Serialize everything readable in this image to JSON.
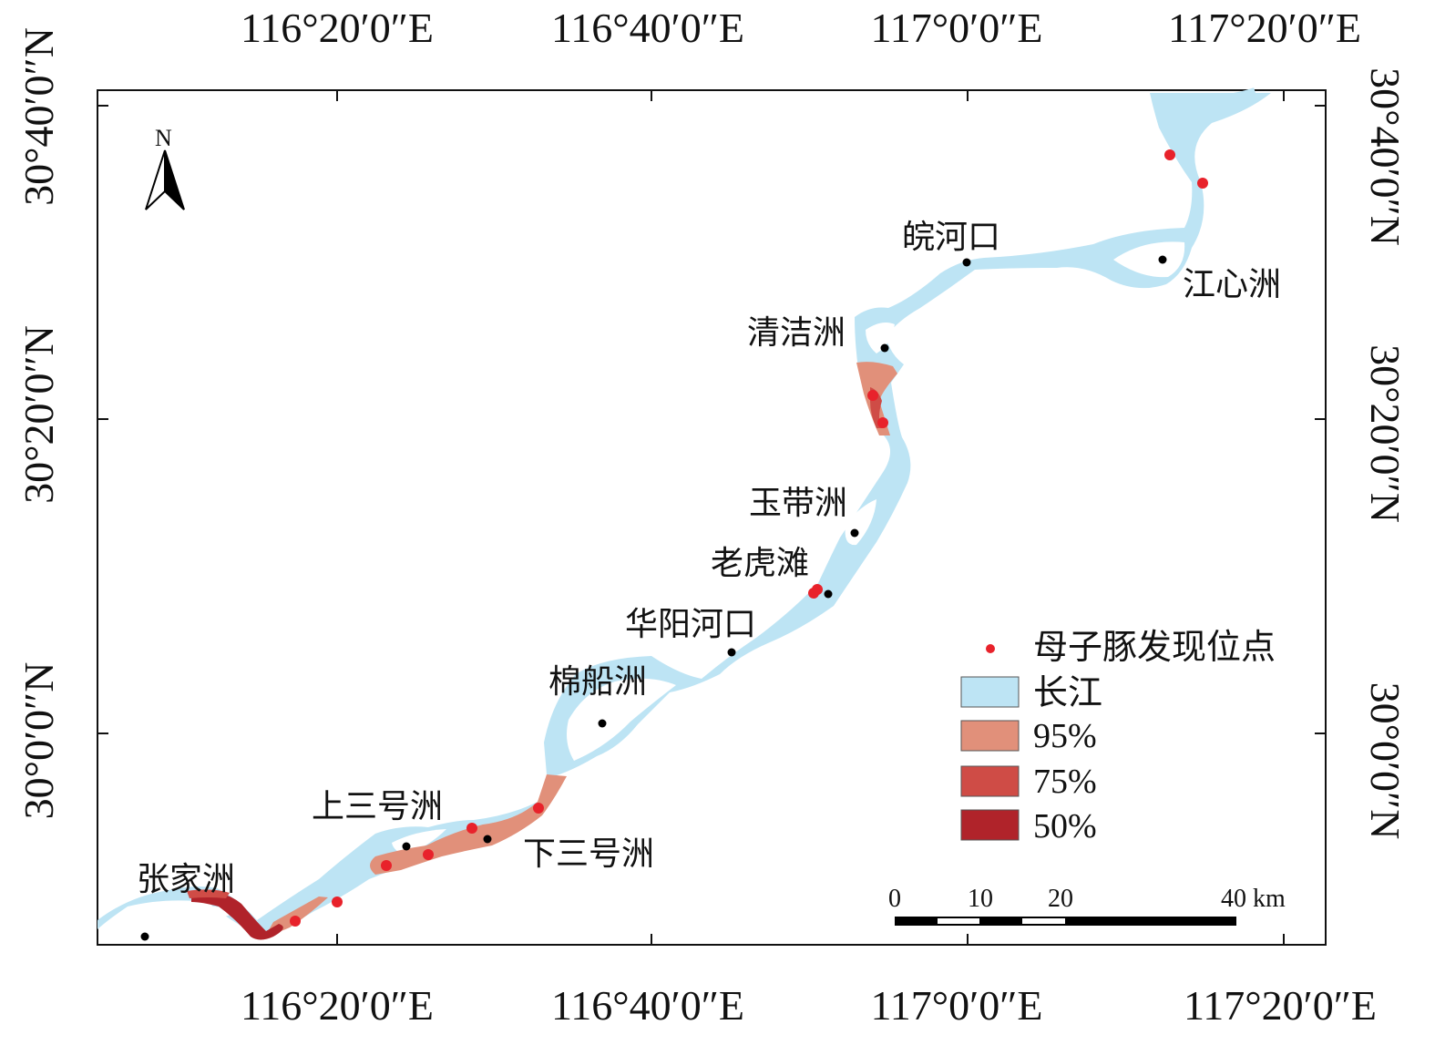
{
  "map": {
    "coordinates": {
      "top_longitudes": [
        "116°20′0″E",
        "116°40′0″E",
        "117°0′0″E",
        "117°20′0″E"
      ],
      "bottom_longitudes": [
        "116°20′0″E",
        "116°40′0″E",
        "117°0′0″E",
        "117°20′0″E"
      ],
      "left_latitudes": [
        "30°40′0″N",
        "30°20′0″N",
        "30°0′0″N"
      ],
      "right_latitudes": [
        "30°40′0″N",
        "30°20′0″N",
        "30°0′0″N"
      ]
    },
    "north_arrow": {
      "label": "N"
    },
    "places": [
      {
        "id": "wanhekou",
        "label": "皖河口"
      },
      {
        "id": "jiangxinzhou",
        "label": "江心洲"
      },
      {
        "id": "qingjiezhou",
        "label": "清洁洲"
      },
      {
        "id": "yudaizhou",
        "label": "玉带洲"
      },
      {
        "id": "laohutan",
        "label": "老虎滩"
      },
      {
        "id": "huayanghekou",
        "label": "华阳河口"
      },
      {
        "id": "mianchuanzhou",
        "label": "棉船洲"
      },
      {
        "id": "shangsanhaozhou",
        "label": "上三号洲"
      },
      {
        "id": "xiasanhaozhou",
        "label": "下三号洲"
      },
      {
        "id": "zhangjiazhou",
        "label": "张家洲"
      }
    ],
    "legend": {
      "items": [
        {
          "label": "母子豚发现位点",
          "kind": "point",
          "color": "#e8222b"
        },
        {
          "label": "长江",
          "kind": "area",
          "color": "#bde4f4"
        },
        {
          "label": "95%",
          "kind": "area",
          "color": "#e1907a"
        },
        {
          "label": "75%",
          "kind": "area",
          "color": "#cf4c46"
        },
        {
          "label": "50%",
          "kind": "area",
          "color": "#b0232a"
        }
      ]
    },
    "scale_bar": {
      "labels": [
        "0",
        "10",
        "20",
        "40 km"
      ]
    },
    "colors": {
      "river": "#bde4f4",
      "kde95": "#e1907a",
      "kde75": "#cf4c46",
      "kde50": "#b0232a",
      "sighting": "#e8222b",
      "site": "#000000"
    }
  }
}
